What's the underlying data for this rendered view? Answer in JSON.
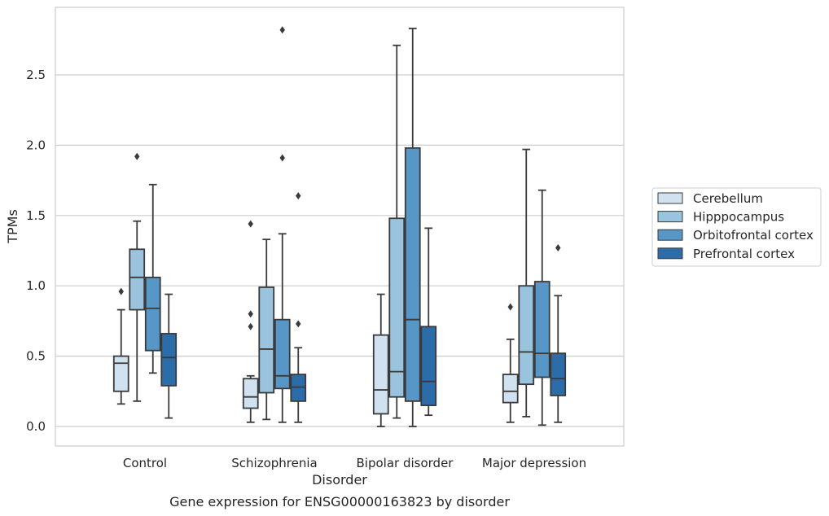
{
  "chart_data": {
    "type": "box",
    "title": "Gene expression for ENSG00000163823 by disorder",
    "xlabel": "Disorder",
    "ylabel": "TPMs",
    "ylim": [
      -0.13,
      2.9
    ],
    "yticks": [
      0.0,
      0.5,
      1.0,
      1.5,
      2.0,
      2.5
    ],
    "ytick_labels": [
      "0.0",
      "0.5",
      "1.0",
      "1.5",
      "2.0",
      "2.5"
    ],
    "grid": "horizontal",
    "legend_position": "right",
    "categories": [
      "Control",
      "Schizophrenia",
      "Bipolar disorder",
      "Major depression"
    ],
    "series": [
      {
        "name": "Cerebellum",
        "color": "#d0e1f0",
        "boxes": [
          {
            "whisker_low": 0.16,
            "q1": 0.25,
            "median": 0.45,
            "q3": 0.5,
            "whisker_high": 0.83,
            "outliers": [
              0.96
            ]
          },
          {
            "whisker_low": 0.03,
            "q1": 0.13,
            "median": 0.21,
            "q3": 0.34,
            "whisker_high": 0.36,
            "outliers": [
              0.71,
              0.8,
              1.44
            ]
          },
          {
            "whisker_low": 0.0,
            "q1": 0.09,
            "median": 0.26,
            "q3": 0.65,
            "whisker_high": 0.94,
            "outliers": []
          },
          {
            "whisker_low": 0.03,
            "q1": 0.17,
            "median": 0.25,
            "q3": 0.37,
            "whisker_high": 0.62,
            "outliers": [
              0.85
            ]
          }
        ]
      },
      {
        "name": "Hipppocampus",
        "color": "#9ac4de",
        "boxes": [
          {
            "whisker_low": 0.18,
            "q1": 0.83,
            "median": 1.06,
            "q3": 1.26,
            "whisker_high": 1.46,
            "outliers": [
              1.92
            ]
          },
          {
            "whisker_low": 0.05,
            "q1": 0.24,
            "median": 0.55,
            "q3": 0.99,
            "whisker_high": 1.33,
            "outliers": []
          },
          {
            "whisker_low": 0.06,
            "q1": 0.21,
            "median": 0.39,
            "q3": 1.48,
            "whisker_high": 2.71,
            "outliers": []
          },
          {
            "whisker_low": 0.07,
            "q1": 0.3,
            "median": 0.53,
            "q3": 1.0,
            "whisker_high": 1.97,
            "outliers": []
          }
        ]
      },
      {
        "name": "Orbitofrontal cortex",
        "color": "#5697c7",
        "boxes": [
          {
            "whisker_low": 0.38,
            "q1": 0.54,
            "median": 0.84,
            "q3": 1.06,
            "whisker_high": 1.72,
            "outliers": []
          },
          {
            "whisker_low": 0.03,
            "q1": 0.27,
            "median": 0.36,
            "q3": 0.76,
            "whisker_high": 1.37,
            "outliers": [
              1.91,
              2.82
            ]
          },
          {
            "whisker_low": 0.0,
            "q1": 0.18,
            "median": 0.76,
            "q3": 1.98,
            "whisker_high": 2.83,
            "outliers": []
          },
          {
            "whisker_low": 0.01,
            "q1": 0.35,
            "median": 0.52,
            "q3": 1.03,
            "whisker_high": 1.68,
            "outliers": []
          }
        ]
      },
      {
        "name": "Prefrontal cortex",
        "color": "#2c6da9",
        "boxes": [
          {
            "whisker_low": 0.06,
            "q1": 0.29,
            "median": 0.49,
            "q3": 0.66,
            "whisker_high": 0.94,
            "outliers": []
          },
          {
            "whisker_low": 0.03,
            "q1": 0.18,
            "median": 0.28,
            "q3": 0.37,
            "whisker_high": 0.56,
            "outliers": [
              0.73,
              1.64
            ]
          },
          {
            "whisker_low": 0.08,
            "q1": 0.15,
            "median": 0.32,
            "q3": 0.71,
            "whisker_high": 1.41,
            "outliers": []
          },
          {
            "whisker_low": 0.03,
            "q1": 0.22,
            "median": 0.34,
            "q3": 0.52,
            "whisker_high": 0.93,
            "outliers": [
              1.27
            ]
          }
        ]
      }
    ]
  }
}
